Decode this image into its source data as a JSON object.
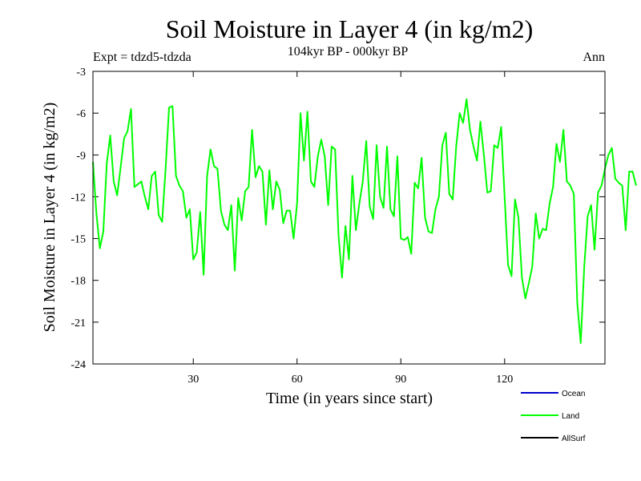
{
  "chart_data": {
    "type": "line",
    "title": "Soil Moisture in Layer 4 (in kg/m2)",
    "subtitle": "104kyr BP - 000kyr BP",
    "experiment": "Expt = tdzd5-tdzda",
    "season": "Ann",
    "xlabel": "Time (in years since start)",
    "ylabel": "Soil Moisture in Layer 4 (in kg/m2)",
    "xlim": [
      1,
      149
    ],
    "ylim": [
      -24,
      -3
    ],
    "xticks": [
      30,
      60,
      90,
      120
    ],
    "yticks": [
      -3,
      -6,
      -9,
      -12,
      -15,
      -18,
      -21,
      -24
    ],
    "legend_position": "bottom-right",
    "series": [
      {
        "name": "Ocean",
        "color": "#0000cc",
        "values": []
      },
      {
        "name": "Land",
        "color": "#00ff00",
        "values": [
          -9.5,
          -13.2,
          -15.7,
          -14.5,
          -9.6,
          -7.6,
          -10.9,
          -11.9,
          -9.9,
          -7.8,
          -7.3,
          -5.7,
          -11.3,
          -11.1,
          -10.9,
          -12.0,
          -12.9,
          -10.5,
          -10.2,
          -13.3,
          -13.8,
          -10.0,
          -5.6,
          -5.5,
          -10.5,
          -11.2,
          -11.6,
          -13.5,
          -12.9,
          -16.5,
          -16.0,
          -13.1,
          -17.6,
          -10.5,
          -8.6,
          -9.8,
          -10.0,
          -13.0,
          -14.0,
          -14.4,
          -12.6,
          -17.3,
          -12.1,
          -13.7,
          -11.6,
          -11.3,
          -7.2,
          -10.6,
          -9.8,
          -10.2,
          -14.0,
          -10.1,
          -12.9,
          -10.9,
          -11.5,
          -13.9,
          -13.0,
          -13.0,
          -15.0,
          -12.5,
          -6.0,
          -9.4,
          -5.9,
          -10.9,
          -11.3,
          -9.1,
          -7.9,
          -9.1,
          -12.6,
          -8.4,
          -8.6,
          -14.8,
          -17.8,
          -14.1,
          -16.5,
          -10.5,
          -14.4,
          -12.5,
          -10.9,
          -8.0,
          -12.7,
          -13.6,
          -8.3,
          -12.0,
          -12.8,
          -8.4,
          -12.9,
          -13.4,
          -9.1,
          -15.0,
          -15.1,
          -14.9,
          -16.1,
          -11.0,
          -11.4,
          -9.2,
          -13.5,
          -14.5,
          -14.6,
          -12.9,
          -12.0,
          -8.3,
          -7.4,
          -11.8,
          -12.2,
          -8.4,
          -6.0,
          -6.7,
          -5.0,
          -7.2,
          -8.4,
          -9.4,
          -6.6,
          -9.0,
          -11.7,
          -11.6,
          -8.3,
          -8.5,
          -7.0,
          -12.0,
          -16.9,
          -17.7,
          -12.2,
          -13.5,
          -17.8,
          -19.3,
          -18.2,
          -17.0,
          -13.2,
          -15.0,
          -14.3,
          -14.4,
          -12.5,
          -11.3,
          -8.2,
          -9.5,
          -7.2,
          -10.9,
          -11.2,
          -11.8,
          -19.6,
          -22.5,
          -17.1,
          -13.4,
          -12.6,
          -15.8,
          -11.7,
          -11.2,
          -10.0,
          -9.0,
          -8.5,
          -10.7,
          -11.0,
          -11.2,
          -14.4,
          -10.2,
          -10.2,
          -11.2
        ]
      },
      {
        "name": "AllSurf",
        "color": "#000000",
        "values": []
      }
    ]
  }
}
